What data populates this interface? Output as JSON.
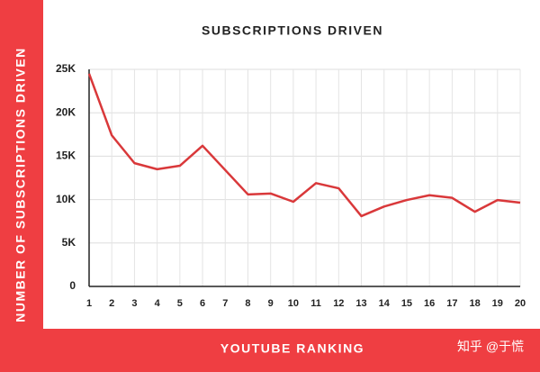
{
  "chart_data": {
    "type": "line",
    "title": "SUBSCRIPTIONS DRIVEN",
    "x_label": "YOUTUBE RANKING",
    "y_label": "NUMBER OF SUBSCRIPTIONS DRIVEN",
    "watermark": "知乎 @于慌",
    "x": [
      1,
      2,
      3,
      4,
      5,
      6,
      7,
      8,
      9,
      10,
      11,
      12,
      13,
      14,
      15,
      16,
      17,
      18,
      19,
      20
    ],
    "values": [
      24500,
      17400,
      14200,
      13500,
      13900,
      16200,
      13400,
      10600,
      10700,
      9750,
      11900,
      11300,
      8100,
      9200,
      9950,
      10500,
      10200,
      8600,
      9950,
      9650
    ],
    "color": "#d9383a",
    "xlim": [
      1,
      20
    ],
    "xticks": [
      1,
      2,
      3,
      4,
      5,
      6,
      7,
      8,
      9,
      10,
      11,
      12,
      13,
      14,
      15,
      16,
      17,
      18,
      19,
      20
    ],
    "ylim": [
      0,
      25000
    ],
    "yticks": [
      0,
      {
        "value": 5000,
        "label": "5K"
      },
      {
        "value": 10000,
        "label": "10K"
      },
      {
        "value": 15000,
        "label": "15K"
      },
      {
        "value": 20000,
        "label": "20K"
      },
      {
        "value": 25000,
        "label": "25K"
      }
    ],
    "grid": true
  }
}
